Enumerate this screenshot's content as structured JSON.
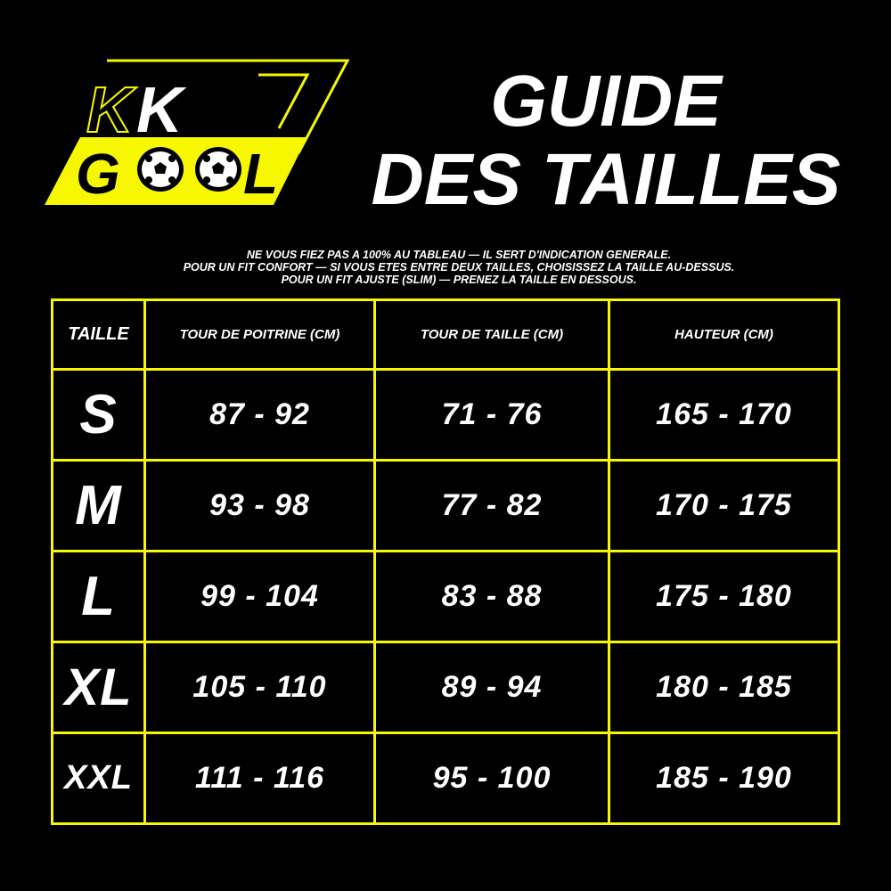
{
  "logo": {
    "text_top": "KK",
    "text_bottom": "GOOL",
    "color": "#f7f700"
  },
  "title": {
    "line1": "GUIDE",
    "line2": "DES TAILLES"
  },
  "notes": [
    "NE VOUS FIEZ PAS A 100% AU TABLEAU — IL SERT D'INDICATION GENERALE.",
    "POUR UN FIT CONFORT — SI VOUS ETES ENTRE DEUX TAILLES, CHOISISSEZ LA TAILLE AU-DESSUS.",
    "POUR UN FIT AJUSTE (SLIM) — PRENEZ LA TAILLE EN DESSOUS."
  ],
  "table": {
    "headers": [
      "TAILLE",
      "TOUR DE POITRINE (CM)",
      "TOUR DE TAILLE (CM)",
      "HAUTEUR (CM)"
    ],
    "rows": [
      [
        "S",
        "87 - 92",
        "71 - 76",
        "165 - 170"
      ],
      [
        "M",
        "93 - 98",
        "77 - 82",
        "170 - 175"
      ],
      [
        "L",
        "99 - 104",
        "83 - 88",
        "175 - 180"
      ],
      [
        "XL",
        "105 - 110",
        "89 - 94",
        "180 - 185"
      ],
      [
        "XXL",
        "111 - 116",
        "95 - 100",
        "185 - 190"
      ]
    ]
  },
  "colors": {
    "accent": "#f7f700",
    "background": "#000000",
    "text": "#ffffff"
  }
}
